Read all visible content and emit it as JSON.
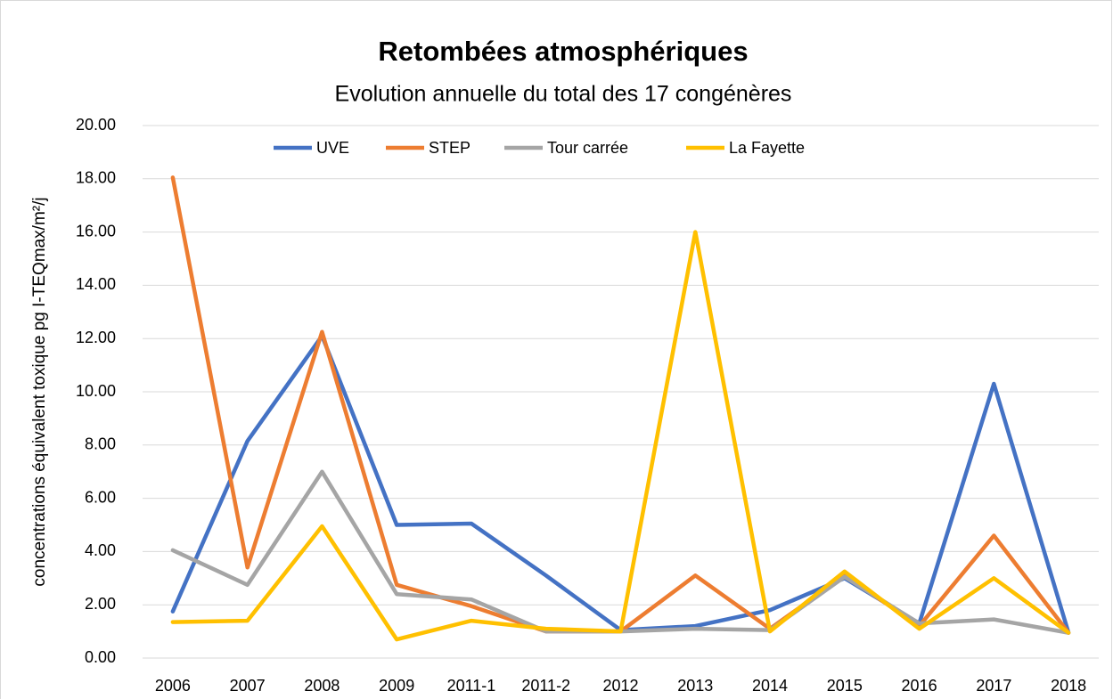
{
  "chart_data": {
    "type": "line",
    "title": "Retombées atmosphériques",
    "subtitle": "Evolution annuelle du total des 17 congénères",
    "y_label": "concentrations équivalent toxique pg I-TEQmax/m²/j",
    "categories": [
      "2006",
      "2007",
      "2008",
      "2009",
      "2011-1",
      "2011-2",
      "2012",
      "2013",
      "2014",
      "2015",
      "2016",
      "2017",
      "2018"
    ],
    "series": [
      {
        "name": "UVE",
        "color": "#4472c4",
        "values": [
          1.75,
          8.15,
          12.1,
          5.0,
          5.05,
          3.1,
          1.05,
          1.2,
          1.8,
          3.0,
          1.3,
          10.3,
          0.95
        ]
      },
      {
        "name": "STEP",
        "color": "#ed7d31",
        "values": [
          18.05,
          3.4,
          12.25,
          2.75,
          1.95,
          1.0,
          1.0,
          3.1,
          1.1,
          3.1,
          1.2,
          4.6,
          0.95
        ]
      },
      {
        "name": "Tour carrée",
        "color": "#a5a5a5",
        "values": [
          4.05,
          2.75,
          7.0,
          2.4,
          2.2,
          1.0,
          1.0,
          1.1,
          1.05,
          3.05,
          1.3,
          1.45,
          0.95
        ]
      },
      {
        "name": "La Fayette",
        "color": "#ffc000",
        "values": [
          1.35,
          1.4,
          4.95,
          0.7,
          1.4,
          1.1,
          1.0,
          16.0,
          1.0,
          3.25,
          1.1,
          3.0,
          0.95
        ]
      }
    ],
    "ylim": [
      0,
      20
    ],
    "yticks": [
      {
        "value": 0,
        "label": "0.00"
      },
      {
        "value": 2,
        "label": "2.00"
      },
      {
        "value": 4,
        "label": "4.00"
      },
      {
        "value": 6,
        "label": "6.00"
      },
      {
        "value": 8,
        "label": "8.00"
      },
      {
        "value": 10,
        "label": "10.00"
      },
      {
        "value": 12,
        "label": "12.00"
      },
      {
        "value": 14,
        "label": "14.00"
      },
      {
        "value": 16,
        "label": "16.00"
      },
      {
        "value": 18,
        "label": "18.00"
      },
      {
        "value": 20,
        "label": "20.00"
      }
    ],
    "grid": true,
    "legend": "top"
  }
}
